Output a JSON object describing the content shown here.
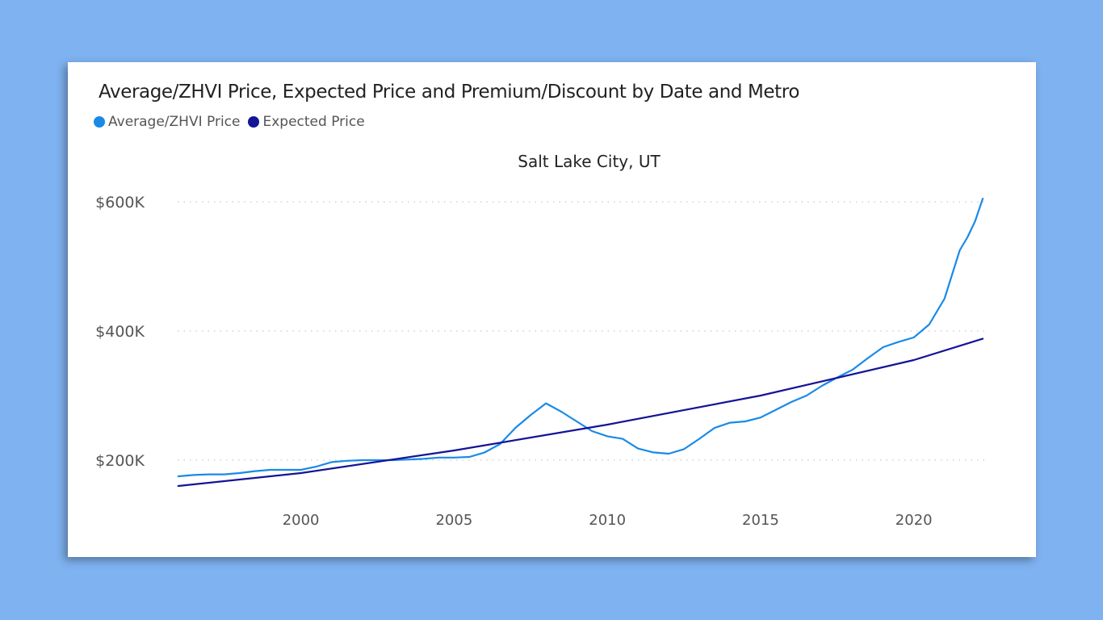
{
  "title": "Average/ZHVI Price, Expected Price and Premium/Discount by Date and Metro",
  "legend": [
    {
      "label": "Average/ZHVI Price",
      "color": "#1a8ae6"
    },
    {
      "label": "Expected Price",
      "color": "#141496"
    }
  ],
  "subtitle": "Salt Lake City, UT",
  "chart_data": {
    "type": "line",
    "title": "Average/ZHVI Price, Expected Price and Premium/Discount by Date and Metro",
    "subtitle": "Salt Lake City, UT",
    "xlabel": "",
    "ylabel": "",
    "xlim": [
      1995.9,
      2022.3
    ],
    "ylim": [
      80000,
      700000
    ],
    "x_ticks": [
      2000,
      2005,
      2010,
      2015,
      2020
    ],
    "x_tick_labels": [
      "2000",
      "2005",
      "2010",
      "2015",
      "2020"
    ],
    "y_ticks": [
      200000,
      400000,
      600000
    ],
    "y_tick_labels": [
      "$200K",
      "$400K",
      "$600K"
    ],
    "grid": "horizontal dotted",
    "legend_position": "top-left",
    "series": [
      {
        "name": "Average/ZHVI Price",
        "color": "#1a8ae6",
        "x": [
          1996.0,
          1996.5,
          1997.0,
          1997.5,
          1998.0,
          1998.5,
          1999.0,
          1999.5,
          2000.0,
          2000.5,
          2001.0,
          2001.5,
          2002.0,
          2002.5,
          2003.0,
          2003.5,
          2004.0,
          2004.5,
          2005.0,
          2005.5,
          2006.0,
          2006.5,
          2007.0,
          2007.5,
          2008.0,
          2008.5,
          2009.0,
          2009.5,
          2010.0,
          2010.5,
          2011.0,
          2011.5,
          2012.0,
          2012.5,
          2013.0,
          2013.5,
          2014.0,
          2014.5,
          2015.0,
          2015.5,
          2016.0,
          2016.5,
          2017.0,
          2017.5,
          2018.0,
          2018.5,
          2019.0,
          2019.5,
          2020.0,
          2020.5,
          2021.0,
          2021.5,
          2021.75,
          2022.0,
          2022.25
        ],
        "values": [
          175000,
          177000,
          178000,
          178000,
          180000,
          183000,
          185000,
          185000,
          185000,
          190000,
          197000,
          199000,
          200000,
          200000,
          200000,
          201000,
          202000,
          204000,
          204000,
          205000,
          212000,
          225000,
          250000,
          270000,
          288000,
          275000,
          260000,
          245000,
          237000,
          233000,
          218000,
          212000,
          210000,
          217000,
          233000,
          250000,
          258000,
          260000,
          266000,
          278000,
          290000,
          300000,
          315000,
          328000,
          340000,
          358000,
          375000,
          383000,
          390000,
          410000,
          450000,
          525000,
          545000,
          570000,
          605000
        ]
      },
      {
        "name": "Expected Price",
        "color": "#141496",
        "x": [
          1996.0,
          2000.0,
          2005.0,
          2010.0,
          2015.0,
          2020.0,
          2022.25
        ],
        "values": [
          160000,
          180000,
          215000,
          255000,
          300000,
          355000,
          388000
        ]
      }
    ]
  }
}
